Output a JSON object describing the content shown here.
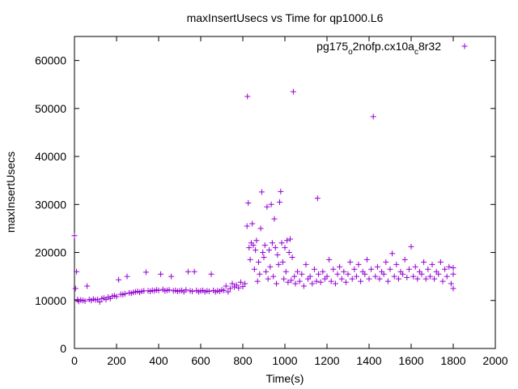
{
  "chart_data": {
    "type": "scatter",
    "title": "maxInsertUsecs vs Time for qp1000.L6",
    "xlabel": "Time(s)",
    "ylabel": "maxInsertUsecs",
    "xlim": [
      0,
      2000
    ],
    "ylim": [
      0,
      65000
    ],
    "xticks": [
      0,
      200,
      400,
      600,
      800,
      1000,
      1200,
      1400,
      1600,
      1800,
      2000
    ],
    "yticks": [
      0,
      10000,
      20000,
      30000,
      40000,
      50000,
      60000
    ],
    "grid": false,
    "legend_position": "top-right",
    "marker": "plus",
    "color": "#9400d3",
    "series": [
      {
        "name_parts": {
          "base": "pg175",
          "sub1": "o",
          "mid": "2nofp.cx10a",
          "sub2": "c",
          "tail": "8r32"
        },
        "points": [
          [
            0,
            23500
          ],
          [
            5,
            12500
          ],
          [
            10,
            16000
          ],
          [
            15,
            10200
          ],
          [
            20,
            9800
          ],
          [
            30,
            10100
          ],
          [
            40,
            10000
          ],
          [
            50,
            9900
          ],
          [
            60,
            13000
          ],
          [
            70,
            10200
          ],
          [
            80,
            10000
          ],
          [
            90,
            10300
          ],
          [
            100,
            10100
          ],
          [
            110,
            10200
          ],
          [
            120,
            9700
          ],
          [
            130,
            10400
          ],
          [
            140,
            10500
          ],
          [
            150,
            10200
          ],
          [
            160,
            10700
          ],
          [
            170,
            10400
          ],
          [
            180,
            10900
          ],
          [
            190,
            11000
          ],
          [
            200,
            10800
          ],
          [
            210,
            14300
          ],
          [
            220,
            11300
          ],
          [
            230,
            11200
          ],
          [
            240,
            11400
          ],
          [
            250,
            15000
          ],
          [
            260,
            11600
          ],
          [
            270,
            11500
          ],
          [
            280,
            11700
          ],
          [
            290,
            11800
          ],
          [
            300,
            11900
          ],
          [
            310,
            11700
          ],
          [
            320,
            11900
          ],
          [
            330,
            12000
          ],
          [
            340,
            15900
          ],
          [
            350,
            12000
          ],
          [
            360,
            11900
          ],
          [
            370,
            12100
          ],
          [
            380,
            12000
          ],
          [
            390,
            12200
          ],
          [
            400,
            12100
          ],
          [
            410,
            15500
          ],
          [
            420,
            12300
          ],
          [
            430,
            12000
          ],
          [
            440,
            12100
          ],
          [
            450,
            12200
          ],
          [
            460,
            15000
          ],
          [
            470,
            12000
          ],
          [
            480,
            12100
          ],
          [
            490,
            11900
          ],
          [
            500,
            12000
          ],
          [
            510,
            12100
          ],
          [
            520,
            11800
          ],
          [
            530,
            12200
          ],
          [
            540,
            16000
          ],
          [
            550,
            12000
          ],
          [
            560,
            11900
          ],
          [
            570,
            16000
          ],
          [
            580,
            12100
          ],
          [
            590,
            11800
          ],
          [
            600,
            12000
          ],
          [
            610,
            12100
          ],
          [
            620,
            11800
          ],
          [
            630,
            12000
          ],
          [
            640,
            11900
          ],
          [
            650,
            15500
          ],
          [
            660,
            12100
          ],
          [
            670,
            11800
          ],
          [
            680,
            12000
          ],
          [
            690,
            11900
          ],
          [
            700,
            12200
          ],
          [
            710,
            12100
          ],
          [
            720,
            13000
          ],
          [
            730,
            11800
          ],
          [
            740,
            12500
          ],
          [
            750,
            13500
          ],
          [
            760,
            12800
          ],
          [
            770,
            13200
          ],
          [
            780,
            12600
          ],
          [
            790,
            13800
          ],
          [
            800,
            12900
          ],
          [
            810,
            13500
          ],
          [
            820,
            25500
          ],
          [
            822,
            52500
          ],
          [
            826,
            30300
          ],
          [
            830,
            21000
          ],
          [
            835,
            18500
          ],
          [
            840,
            22000
          ],
          [
            845,
            26000
          ],
          [
            850,
            21500
          ],
          [
            855,
            16500
          ],
          [
            860,
            20500
          ],
          [
            865,
            22500
          ],
          [
            870,
            14000
          ],
          [
            875,
            18000
          ],
          [
            880,
            15500
          ],
          [
            885,
            25000
          ],
          [
            890,
            32600
          ],
          [
            895,
            20000
          ],
          [
            900,
            19000
          ],
          [
            905,
            21500
          ],
          [
            910,
            16000
          ],
          [
            915,
            29500
          ],
          [
            920,
            14500
          ],
          [
            925,
            20500
          ],
          [
            930,
            17000
          ],
          [
            935,
            30000
          ],
          [
            940,
            22000
          ],
          [
            945,
            15000
          ],
          [
            950,
            27000
          ],
          [
            955,
            21000
          ],
          [
            960,
            13500
          ],
          [
            965,
            19500
          ],
          [
            970,
            17500
          ],
          [
            975,
            30500
          ],
          [
            980,
            32700
          ],
          [
            985,
            22000
          ],
          [
            990,
            18000
          ],
          [
            995,
            14500
          ],
          [
            1000,
            21000
          ],
          [
            1005,
            16000
          ],
          [
            1010,
            22500
          ],
          [
            1015,
            13800
          ],
          [
            1020,
            20000
          ],
          [
            1025,
            22800
          ],
          [
            1030,
            14200
          ],
          [
            1035,
            19000
          ],
          [
            1040,
            53500
          ],
          [
            1045,
            15000
          ],
          [
            1050,
            13500
          ],
          [
            1060,
            16000
          ],
          [
            1070,
            14000
          ],
          [
            1080,
            15500
          ],
          [
            1090,
            13000
          ],
          [
            1100,
            17500
          ],
          [
            1110,
            14500
          ],
          [
            1120,
            15000
          ],
          [
            1130,
            13500
          ],
          [
            1140,
            16500
          ],
          [
            1150,
            14000
          ],
          [
            1155,
            31300
          ],
          [
            1160,
            15500
          ],
          [
            1170,
            13800
          ],
          [
            1180,
            16000
          ],
          [
            1190,
            14500
          ],
          [
            1200,
            15000
          ],
          [
            1210,
            18500
          ],
          [
            1220,
            14000
          ],
          [
            1230,
            16500
          ],
          [
            1240,
            13500
          ],
          [
            1250,
            15500
          ],
          [
            1260,
            17000
          ],
          [
            1270,
            14500
          ],
          [
            1280,
            16000
          ],
          [
            1290,
            13800
          ],
          [
            1300,
            15500
          ],
          [
            1310,
            18000
          ],
          [
            1320,
            14500
          ],
          [
            1330,
            16500
          ],
          [
            1340,
            15000
          ],
          [
            1350,
            17500
          ],
          [
            1360,
            14000
          ],
          [
            1370,
            16000
          ],
          [
            1380,
            15500
          ],
          [
            1390,
            18500
          ],
          [
            1400,
            14500
          ],
          [
            1410,
            16500
          ],
          [
            1420,
            48300
          ],
          [
            1430,
            15000
          ],
          [
            1440,
            17000
          ],
          [
            1450,
            14500
          ],
          [
            1460,
            16000
          ],
          [
            1470,
            15500
          ],
          [
            1480,
            18000
          ],
          [
            1490,
            14000
          ],
          [
            1500,
            16500
          ],
          [
            1510,
            19800
          ],
          [
            1520,
            15000
          ],
          [
            1530,
            17500
          ],
          [
            1540,
            14500
          ],
          [
            1550,
            16000
          ],
          [
            1560,
            15500
          ],
          [
            1570,
            18500
          ],
          [
            1580,
            14800
          ],
          [
            1590,
            16500
          ],
          [
            1600,
            21200
          ],
          [
            1610,
            15000
          ],
          [
            1620,
            17000
          ],
          [
            1630,
            14500
          ],
          [
            1640,
            16000
          ],
          [
            1650,
            15500
          ],
          [
            1660,
            18000
          ],
          [
            1670,
            14500
          ],
          [
            1680,
            16500
          ],
          [
            1690,
            15000
          ],
          [
            1700,
            17500
          ],
          [
            1710,
            14500
          ],
          [
            1720,
            16000
          ],
          [
            1730,
            15500
          ],
          [
            1740,
            18000
          ],
          [
            1750,
            14000
          ],
          [
            1760,
            16500
          ],
          [
            1770,
            15000
          ],
          [
            1780,
            17000
          ],
          [
            1790,
            13500
          ],
          [
            1800,
            12500
          ],
          [
            1800,
            15500
          ],
          [
            1800,
            16800
          ]
        ]
      }
    ]
  }
}
